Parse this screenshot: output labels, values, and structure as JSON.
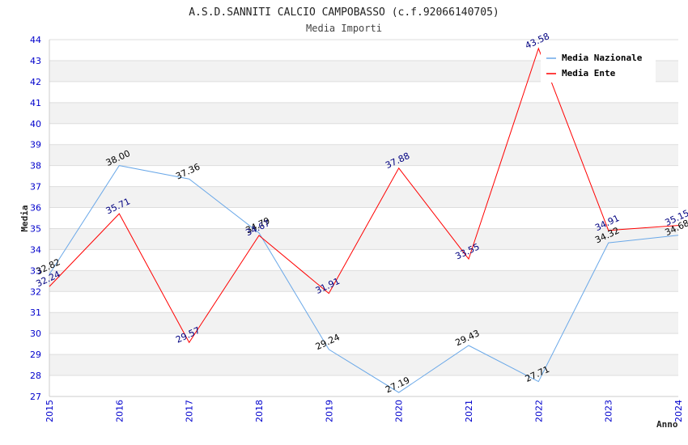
{
  "chart_data": {
    "type": "line",
    "title": "A.S.D.SANNITI CALCIO CAMPOBASSO (c.f.92066140705)",
    "subtitle": "Media Importi",
    "xlabel": "Anno",
    "ylabel": "Media",
    "x": [
      "2015",
      "2016",
      "2017",
      "2018",
      "2019",
      "2020",
      "2021",
      "2022",
      "2023",
      "2024"
    ],
    "ylim": [
      27,
      44
    ],
    "yticks": [
      "27",
      "28",
      "29",
      "30",
      "31",
      "32",
      "33",
      "34",
      "35",
      "36",
      "37",
      "38",
      "39",
      "40",
      "41",
      "42",
      "43",
      "44"
    ],
    "grid": true,
    "legend_position": "top-right",
    "series": [
      {
        "name": "Media Nazionale",
        "color": "#6aa8e8",
        "label_color": "#000000",
        "values": [
          32.82,
          38.0,
          37.36,
          34.79,
          29.24,
          27.19,
          29.43,
          27.71,
          34.32,
          34.68
        ],
        "labels": [
          "32.82",
          "38.00",
          "37.36",
          "34.79",
          "29.24",
          "27.19",
          "29.43",
          "27.71",
          "34.32",
          "34.68"
        ]
      },
      {
        "name": "Media Ente",
        "color": "#ff0000",
        "label_color": "#000080",
        "values": [
          32.24,
          35.71,
          29.57,
          34.67,
          31.91,
          37.88,
          33.55,
          43.58,
          34.91,
          35.15
        ],
        "labels": [
          "32.24",
          "35.71",
          "29.57",
          "34.67",
          "31.91",
          "37.88",
          "33.55",
          "43.58",
          "34.91",
          "35.15"
        ]
      }
    ]
  }
}
